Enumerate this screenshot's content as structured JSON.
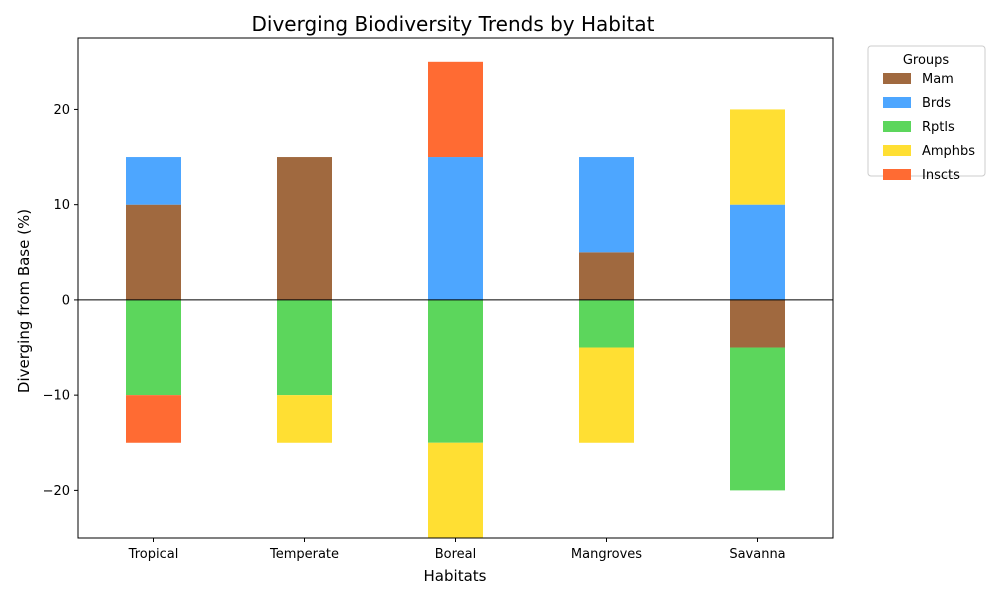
{
  "chart_data": {
    "type": "bar",
    "stacked": "diverging",
    "title": "Diverging Biodiversity Trends by Habitat",
    "xlabel": "Habitats",
    "ylabel": "Diverging from Base (%)",
    "categories": [
      "Tropical",
      "Temperate",
      "Boreal",
      "Mangroves",
      "Savanna"
    ],
    "ylim": [
      -25,
      27.5
    ],
    "yticks": [
      -20,
      -10,
      0,
      10,
      20
    ],
    "ytick_labels": [
      "−20",
      "−10",
      "0",
      "10",
      "20"
    ],
    "grid": false,
    "legend": {
      "title": "Groups",
      "placement": "outside-top-right"
    },
    "series": [
      {
        "name": "Mam",
        "color": "#a0693f",
        "values": [
          10,
          15,
          0,
          5,
          -5
        ]
      },
      {
        "name": "Brds",
        "color": "#4da6ff",
        "values": [
          5,
          0,
          15,
          10,
          10
        ]
      },
      {
        "name": "Rptls",
        "color": "#5cd65c",
        "values": [
          -10,
          -10,
          -15,
          -5,
          -15
        ]
      },
      {
        "name": "Amphbs",
        "color": "#ffdf33",
        "values": [
          0,
          -5,
          -10,
          -10,
          10
        ]
      },
      {
        "name": "Inscts",
        "color": "#ff6b33",
        "values": [
          -5,
          0,
          10,
          0,
          0
        ]
      }
    ]
  }
}
